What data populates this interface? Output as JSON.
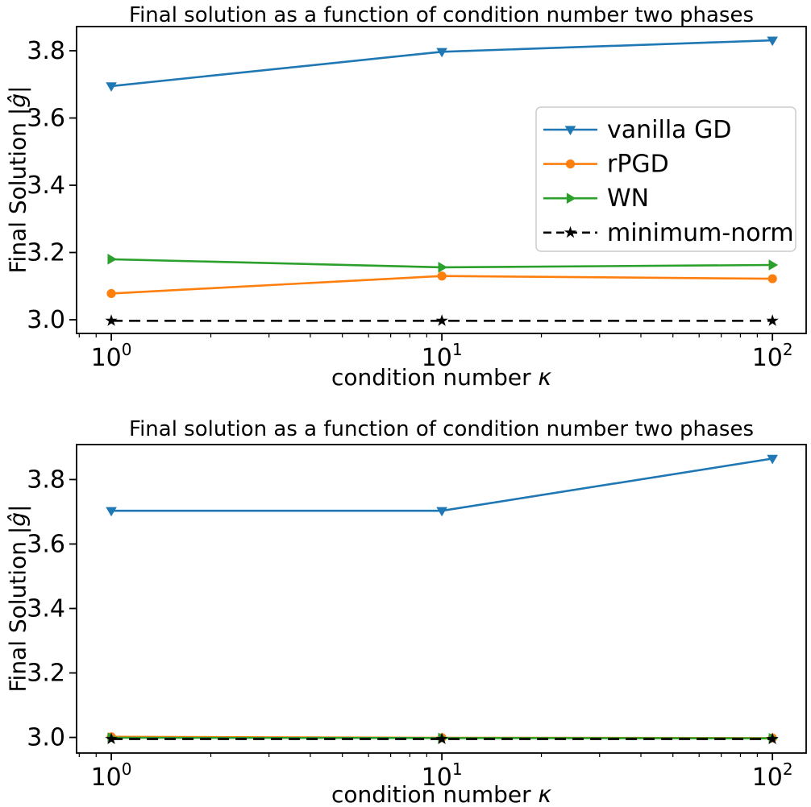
{
  "colors": {
    "vanilla_gd": "#1f77b4",
    "rpgd": "#ff7f0e",
    "wn": "#2ca02c",
    "minimum_norm": "#000000",
    "axis": "#000000",
    "legend_border": "#cccccc",
    "background": "#ffffff"
  },
  "chart_data": [
    {
      "type": "line",
      "title": "Final solution as a function of condition number two phases",
      "xlabel": "condition number κ",
      "xlabel_prefix": "condition number ",
      "xlabel_math": "κ",
      "ylabel": "Final Solution |ĝ|",
      "ylabel_prefix": "Final Solution |",
      "ylabel_math": "ĝ",
      "ylabel_suffix": "|",
      "x_scale": "log",
      "x": [
        1,
        10,
        100
      ],
      "x_tick_base": "10",
      "x_tick_exponents": [
        "0",
        "1",
        "2"
      ],
      "y_tick_labels": [
        "3.0",
        "3.2",
        "3.4",
        "3.6",
        "3.8"
      ],
      "y_ticks": [
        3.0,
        3.2,
        3.4,
        3.6,
        3.8
      ],
      "ylim": [
        2.9593,
        3.8719
      ],
      "xlim_log": [
        -0.105,
        2.102
      ],
      "grid": false,
      "legend": {
        "visible": true,
        "location": "center right"
      },
      "series": [
        {
          "name": "vanilla GD",
          "color_key": "vanilla_gd",
          "marker": "triangle-down",
          "line_style": "solid",
          "values": [
            3.695,
            3.797,
            3.831
          ]
        },
        {
          "name": "rPGD",
          "color_key": "rpgd",
          "marker": "circle",
          "line_style": "solid",
          "values": [
            3.078,
            3.13,
            3.122
          ]
        },
        {
          "name": "WN",
          "color_key": "wn",
          "marker": "triangle-right",
          "line_style": "solid",
          "values": [
            3.18,
            3.156,
            3.163
          ]
        },
        {
          "name": "minimum-norm",
          "color_key": "minimum_norm",
          "marker": "star",
          "line_style": "dashed",
          "values": [
            2.997,
            2.997,
            2.997
          ]
        }
      ]
    },
    {
      "type": "line",
      "title": "Final solution as a function of condition number two phases",
      "xlabel": "condition number κ",
      "xlabel_prefix": "condition number ",
      "xlabel_math": "κ",
      "ylabel": "Final Solution |ĝ|",
      "ylabel_prefix": "Final Solution |",
      "ylabel_math": "ĝ",
      "ylabel_suffix": "|",
      "x_scale": "log",
      "x": [
        1,
        10,
        100
      ],
      "x_tick_base": "10",
      "x_tick_exponents": [
        "0",
        "1",
        "2"
      ],
      "y_tick_labels": [
        "3.0",
        "3.2",
        "3.4",
        "3.6",
        "3.8"
      ],
      "y_ticks": [
        3.0,
        3.2,
        3.4,
        3.6,
        3.8
      ],
      "ylim": [
        2.9515,
        3.9085
      ],
      "xlim_log": [
        -0.105,
        2.102
      ],
      "grid": false,
      "legend": {
        "visible": false
      },
      "series": [
        {
          "name": "vanilla GD",
          "color_key": "vanilla_gd",
          "marker": "triangle-down",
          "line_style": "solid",
          "values": [
            3.703,
            3.703,
            3.865
          ]
        },
        {
          "name": "rPGD",
          "color_key": "rpgd",
          "marker": "circle",
          "line_style": "solid",
          "values": [
            3.002,
            2.999,
            2.998
          ]
        },
        {
          "name": "WN",
          "color_key": "wn",
          "marker": "triangle-right",
          "line_style": "solid",
          "values": [
            2.999,
            2.998,
            2.997
          ]
        },
        {
          "name": "minimum-norm",
          "color_key": "minimum_norm",
          "marker": "star",
          "line_style": "dashed",
          "values": [
            2.995,
            2.995,
            2.995
          ]
        }
      ]
    }
  ]
}
